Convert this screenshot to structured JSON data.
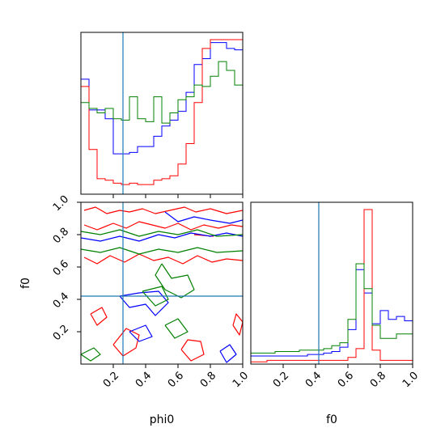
{
  "chart_data": {
    "type": "corner",
    "parameters": [
      "phi0",
      "f0"
    ],
    "truths": {
      "phi0": 0.26,
      "f0": 0.42
    },
    "colors": {
      "series_a": "#0000ff",
      "series_b": "#ff0000",
      "series_c": "#008000",
      "truth": "#1f77b4"
    },
    "histograms": {
      "phi0": {
        "range": [
          0,
          1
        ],
        "bin_edges": [
          0,
          0.05,
          0.1,
          0.15,
          0.2,
          0.25,
          0.3,
          0.35,
          0.4,
          0.45,
          0.5,
          0.55,
          0.6,
          0.65,
          0.7,
          0.75,
          0.8,
          0.85,
          0.9,
          0.95,
          1.0
        ],
        "blue": [
          0.78,
          0.57,
          0.57,
          0.51,
          0.27,
          0.27,
          0.28,
          0.32,
          0.32,
          0.39,
          0.46,
          0.5,
          0.56,
          0.69,
          0.88,
          0.92,
          1.03,
          1.03,
          0.99,
          0.98
        ],
        "red": [
          0.73,
          0.3,
          0.1,
          0.09,
          0.07,
          0.06,
          0.07,
          0.06,
          0.06,
          0.09,
          0.1,
          0.12,
          0.2,
          0.34,
          0.62,
          0.99,
          1.05,
          1.05,
          1.05,
          1.05
        ],
        "green": [
          0.62,
          0.58,
          0.55,
          0.58,
          0.51,
          0.5,
          0.66,
          0.51,
          0.49,
          0.66,
          0.48,
          0.55,
          0.64,
          0.66,
          0.74,
          0.73,
          0.8,
          0.9,
          0.84,
          0.74
        ]
      },
      "f0": {
        "range": [
          0,
          1
        ],
        "bin_edges": [
          0,
          0.05,
          0.1,
          0.15,
          0.2,
          0.25,
          0.3,
          0.35,
          0.4,
          0.45,
          0.5,
          0.55,
          0.6,
          0.65,
          0.7,
          0.75,
          0.8,
          0.85,
          0.9,
          0.95,
          1.0
        ],
        "blue": [
          0.05,
          0.05,
          0.05,
          0.05,
          0.05,
          0.05,
          0.05,
          0.06,
          0.06,
          0.07,
          0.08,
          0.11,
          0.23,
          0.64,
          0.48,
          0.27,
          0.36,
          0.3,
          0.32,
          0.29
        ],
        "red": [
          0.01,
          0.01,
          0.02,
          0.02,
          0.02,
          0.02,
          0.02,
          0.02,
          0.02,
          0.02,
          0.02,
          0.02,
          0.04,
          0.1,
          1.05,
          0.09,
          0.02,
          0.02,
          0.02,
          0.02
        ],
        "green": [
          0.07,
          0.07,
          0.07,
          0.08,
          0.08,
          0.08,
          0.09,
          0.09,
          0.09,
          0.1,
          0.12,
          0.14,
          0.3,
          0.68,
          0.51,
          0.26,
          0.17,
          0.17,
          0.2,
          0.2
        ]
      }
    },
    "joint": {
      "x": "phi0",
      "y": "f0",
      "xlim": [
        0,
        1
      ],
      "ylim": [
        0,
        1
      ],
      "xticks": [
        0.2,
        0.4,
        0.6,
        0.8,
        1.0
      ],
      "yticks": [
        0.2,
        0.4,
        0.6,
        0.8,
        1.0
      ],
      "contours": [
        {
          "color": "red",
          "points": [
            [
              0.02,
              0.95
            ],
            [
              0.09,
              0.97
            ],
            [
              0.16,
              0.93
            ],
            [
              0.24,
              0.95
            ],
            [
              0.3,
              0.94
            ],
            [
              0.38,
              0.96
            ],
            [
              0.46,
              0.93
            ],
            [
              0.55,
              0.95
            ],
            [
              0.64,
              0.97
            ],
            [
              0.71,
              0.94
            ],
            [
              0.8,
              0.96
            ],
            [
              0.9,
              0.93
            ],
            [
              1.0,
              0.95
            ]
          ]
        },
        {
          "color": "red",
          "points": [
            [
              0.02,
              0.86
            ],
            [
              0.1,
              0.83
            ],
            [
              0.2,
              0.87
            ],
            [
              0.28,
              0.84
            ],
            [
              0.36,
              0.88
            ],
            [
              0.44,
              0.86
            ],
            [
              0.52,
              0.84
            ],
            [
              0.6,
              0.87
            ],
            [
              0.68,
              0.83
            ],
            [
              0.76,
              0.86
            ],
            [
              0.85,
              0.84
            ],
            [
              0.93,
              0.86
            ],
            [
              1.0,
              0.85
            ]
          ]
        },
        {
          "color": "red",
          "points": [
            [
              0.02,
              0.66
            ],
            [
              0.1,
              0.62
            ],
            [
              0.18,
              0.67
            ],
            [
              0.27,
              0.63
            ],
            [
              0.36,
              0.68
            ],
            [
              0.45,
              0.64
            ],
            [
              0.54,
              0.66
            ],
            [
              0.63,
              0.62
            ],
            [
              0.72,
              0.67
            ],
            [
              0.81,
              0.63
            ],
            [
              0.9,
              0.65
            ],
            [
              1.0,
              0.64
            ]
          ]
        },
        {
          "color": "red",
          "points": [
            [
              0.06,
              0.31
            ],
            [
              0.1,
              0.24
            ],
            [
              0.16,
              0.29
            ],
            [
              0.13,
              0.35
            ],
            [
              0.06,
              0.31
            ]
          ]
        },
        {
          "color": "red",
          "points": [
            [
              0.2,
              0.12
            ],
            [
              0.26,
              0.05
            ],
            [
              0.34,
              0.1
            ],
            [
              0.36,
              0.18
            ],
            [
              0.28,
              0.22
            ],
            [
              0.2,
              0.12
            ]
          ]
        },
        {
          "color": "red",
          "points": [
            [
              0.62,
              0.09
            ],
            [
              0.68,
              0.02
            ],
            [
              0.76,
              0.06
            ],
            [
              0.74,
              0.14
            ],
            [
              0.66,
              0.15
            ],
            [
              0.62,
              0.09
            ]
          ]
        },
        {
          "color": "red",
          "points": [
            [
              0.94,
              0.24
            ],
            [
              0.98,
              0.18
            ],
            [
              1.0,
              0.26
            ],
            [
              0.96,
              0.31
            ],
            [
              0.94,
              0.24
            ]
          ]
        },
        {
          "color": "red",
          "points": [
            [
              0.7,
              0.8
            ],
            [
              0.82,
              0.79
            ]
          ]
        },
        {
          "color": "blue",
          "points": [
            [
              0.0,
              0.78
            ],
            [
              0.12,
              0.76
            ],
            [
              0.24,
              0.79
            ],
            [
              0.36,
              0.76
            ],
            [
              0.48,
              0.8
            ],
            [
              0.58,
              0.78
            ],
            [
              0.68,
              0.81
            ],
            [
              0.8,
              0.79
            ],
            [
              0.9,
              0.81
            ],
            [
              1.0,
              0.79
            ]
          ]
        },
        {
          "color": "blue",
          "points": [
            [
              0.52,
              0.94
            ],
            [
              0.6,
              0.88
            ],
            [
              0.7,
              0.91
            ],
            [
              0.8,
              0.89
            ],
            [
              0.92,
              0.87
            ],
            [
              1.0,
              0.89
            ]
          ]
        },
        {
          "color": "blue",
          "points": [
            [
              0.24,
              0.42
            ],
            [
              0.3,
              0.35
            ],
            [
              0.4,
              0.37
            ],
            [
              0.46,
              0.3
            ],
            [
              0.54,
              0.38
            ],
            [
              0.48,
              0.45
            ],
            [
              0.36,
              0.44
            ],
            [
              0.24,
              0.42
            ]
          ]
        },
        {
          "color": "blue",
          "points": [
            [
              0.3,
              0.2
            ],
            [
              0.36,
              0.14
            ],
            [
              0.44,
              0.17
            ],
            [
              0.4,
              0.24
            ],
            [
              0.3,
              0.2
            ]
          ]
        },
        {
          "color": "blue",
          "points": [
            [
              0.86,
              0.08
            ],
            [
              0.9,
              0.01
            ],
            [
              0.96,
              0.06
            ],
            [
              0.92,
              0.12
            ],
            [
              0.86,
              0.08
            ]
          ]
        },
        {
          "color": "green",
          "points": [
            [
              0.0,
              0.82
            ],
            [
              0.12,
              0.8
            ],
            [
              0.24,
              0.83
            ],
            [
              0.36,
              0.79
            ],
            [
              0.48,
              0.82
            ],
            [
              0.6,
              0.8
            ],
            [
              0.72,
              0.83
            ],
            [
              0.84,
              0.79
            ],
            [
              1.0,
              0.8
            ]
          ]
        },
        {
          "color": "green",
          "points": [
            [
              0.0,
              0.71
            ],
            [
              0.12,
              0.69
            ],
            [
              0.24,
              0.72
            ],
            [
              0.36,
              0.68
            ],
            [
              0.48,
              0.71
            ],
            [
              0.6,
              0.69
            ],
            [
              0.72,
              0.72
            ],
            [
              0.84,
              0.69
            ],
            [
              1.0,
              0.7
            ]
          ]
        },
        {
          "color": "green",
          "points": [
            [
              0.5,
              0.62
            ],
            [
              0.56,
              0.53
            ],
            [
              0.66,
              0.55
            ],
            [
              0.7,
              0.46
            ],
            [
              0.62,
              0.41
            ],
            [
              0.52,
              0.46
            ],
            [
              0.46,
              0.55
            ],
            [
              0.5,
              0.62
            ]
          ]
        },
        {
          "color": "green",
          "points": [
            [
              0.38,
              0.45
            ],
            [
              0.46,
              0.36
            ],
            [
              0.54,
              0.4
            ],
            [
              0.5,
              0.48
            ],
            [
              0.38,
              0.45
            ]
          ]
        },
        {
          "color": "green",
          "points": [
            [
              0.52,
              0.24
            ],
            [
              0.58,
              0.16
            ],
            [
              0.66,
              0.2
            ],
            [
              0.6,
              0.28
            ],
            [
              0.52,
              0.24
            ]
          ]
        },
        {
          "color": "green",
          "points": [
            [
              0.0,
              0.06
            ],
            [
              0.06,
              0.02
            ],
            [
              0.12,
              0.06
            ],
            [
              0.08,
              0.1
            ],
            [
              0.0,
              0.06
            ]
          ]
        }
      ]
    },
    "axis_labels": {
      "x_left": "phi0",
      "x_right": "f0",
      "y_left": "f0"
    },
    "tick_labels": {
      "joint_x": [
        "0.2",
        "0.4",
        "0.6",
        "0.8",
        "1.0"
      ],
      "joint_y": [
        "0.2",
        "0.4",
        "0.6",
        "0.8",
        "1.0"
      ],
      "f0_x": [
        "0.2",
        "0.4",
        "0.6",
        "0.8",
        "1.0"
      ]
    }
  }
}
